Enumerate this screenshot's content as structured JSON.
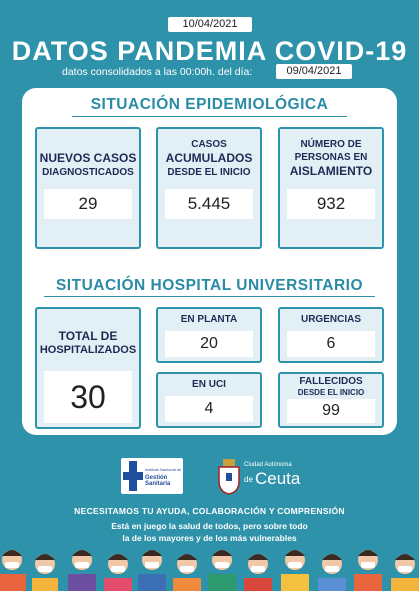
{
  "header": {
    "date": "10/04/2021",
    "title": "DATOS PANDEMIA COVID-19",
    "subtitle": "datos consolidados a las 00:00h. del día:",
    "data_date": "09/04/2021"
  },
  "epidemiological": {
    "title": "SITUACIÓN EPIDEMIOLÓGICA",
    "items": [
      {
        "label_lines": [
          "NUEVOS CASOS",
          "DIAGNOSTICADOS"
        ],
        "value": "29"
      },
      {
        "label_lines": [
          "CASOS",
          "ACUMULADOS",
          "DESDE EL INICIO"
        ],
        "value": "5.445"
      },
      {
        "label_lines": [
          "NÚMERO DE",
          "PERSONAS EN",
          "AISLAMIENTO"
        ],
        "value": "932"
      }
    ]
  },
  "hospital": {
    "title": "SITUACIÓN HOSPITAL UNIVERSITARIO",
    "items": [
      {
        "label_lines": [
          "TOTAL DE",
          "HOSPITALIZADOS"
        ],
        "value": "30"
      },
      {
        "label_lines": [
          "EN PLANTA"
        ],
        "value": "20"
      },
      {
        "label_lines": [
          "URGENCIAS"
        ],
        "value": "6"
      },
      {
        "label_lines": [
          "EN UCI"
        ],
        "value": "4"
      },
      {
        "label_lines": [
          "FALLECIDOS",
          "DESDE EL INICIO"
        ],
        "value": "99"
      }
    ]
  },
  "footer": {
    "logo_ingesa": [
      "Instituto Nacional de",
      "Gestión Sanitaria"
    ],
    "logo_ceuta": [
      "Ciudad Autónoma",
      "de",
      "Ceuta"
    ],
    "message": "NECESITAMOS TU AYUDA, COLABORACIÓN  Y COMPRENSIÓN",
    "lines": [
      "Está en juego la salud de todos, pero sobre todo",
      "la de los mayores y de los más vulnerables"
    ]
  }
}
